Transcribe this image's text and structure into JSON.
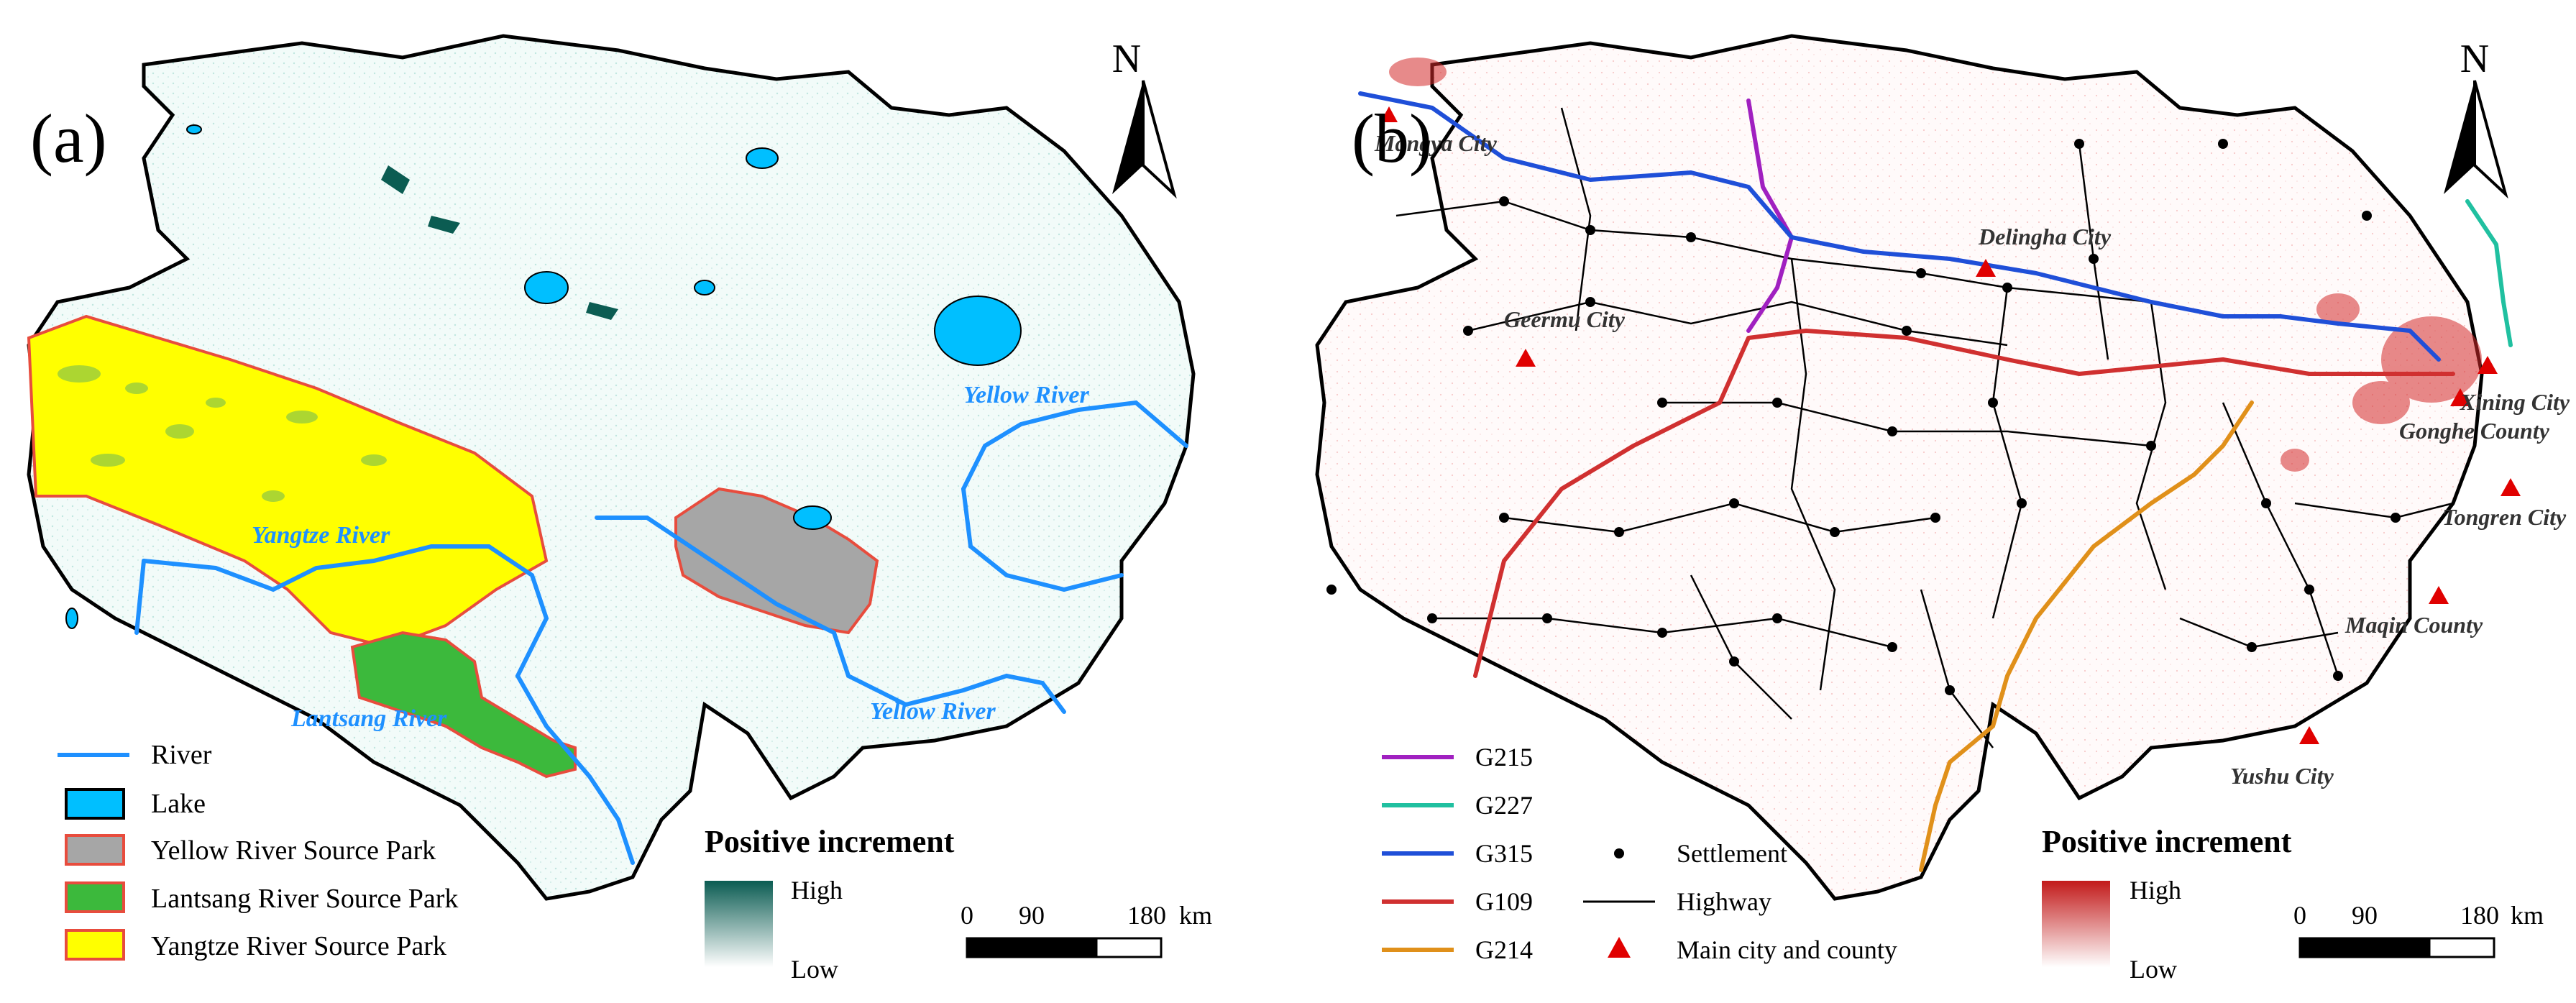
{
  "panel_a": {
    "label": "(a)",
    "north": "N",
    "rivers": [
      {
        "name": "Yellow River"
      },
      {
        "name": "Yellow River"
      },
      {
        "name": "Yangtze River"
      },
      {
        "name": "Lantsang River"
      }
    ],
    "legend": [
      {
        "label": "River",
        "kind": "line",
        "color": "#1e90ff"
      },
      {
        "label": "Lake",
        "kind": "box",
        "color": "#00bfff"
      },
      {
        "label": "Yellow River Source Park",
        "kind": "box",
        "color": "#a6a6a6"
      },
      {
        "label": "Lantsang  River Source Park",
        "kind": "box",
        "color": "#3cb93c"
      },
      {
        "label": "Yangtze River Source Park",
        "kind": "box",
        "color": "#ffff00"
      }
    ],
    "ramp": {
      "title": "Positive increment",
      "high": "High",
      "low": "Low",
      "high_color": "#0b5c52",
      "low_color": "#ffffff"
    },
    "scale": {
      "ticks": [
        "0",
        "90",
        "180"
      ],
      "unit": "km"
    }
  },
  "panel_b": {
    "label": "(b)",
    "north": "N",
    "cities": [
      {
        "name": "Mangya City"
      },
      {
        "name": "Delingha City"
      },
      {
        "name": "Geermu City"
      },
      {
        "name": "Xining City"
      },
      {
        "name": "Gonghe County"
      },
      {
        "name": "Tongren City"
      },
      {
        "name": "Maqin County"
      },
      {
        "name": "Yushu City"
      }
    ],
    "legend_roads": [
      {
        "label": "G215",
        "color": "#a020c0"
      },
      {
        "label": "G227",
        "color": "#20c0a0"
      },
      {
        "label": "G315",
        "color": "#1f4fd8"
      },
      {
        "label": "G109",
        "color": "#d03030"
      },
      {
        "label": "G214",
        "color": "#e0901a"
      }
    ],
    "legend_symbols": [
      {
        "label": "Settlement",
        "kind": "dot"
      },
      {
        "label": "Highway",
        "kind": "line"
      },
      {
        "label": "Main city and county",
        "kind": "triangle"
      }
    ],
    "ramp": {
      "title": "Positive increment",
      "high": "High",
      "low": "Low",
      "high_color": "#c21a1a",
      "low_color": "#ffffff"
    },
    "scale": {
      "ticks": [
        "0",
        "90",
        "180"
      ],
      "unit": "km"
    }
  }
}
